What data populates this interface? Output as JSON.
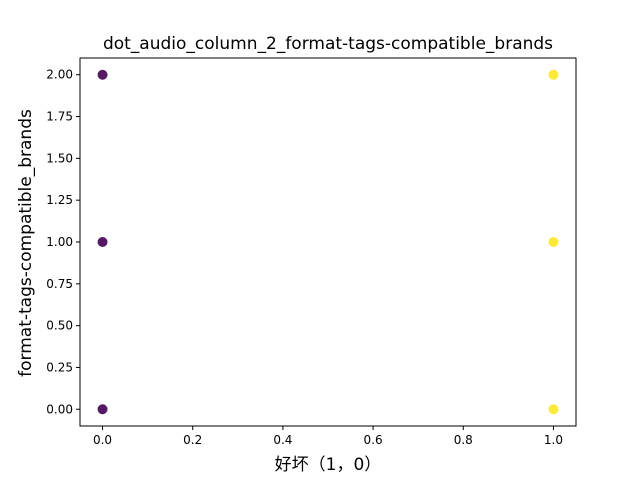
{
  "chart_data": {
    "type": "scatter",
    "title": "dot_audio_column_2_format-tags-compatible_brands",
    "xlabel": "好坏（1，0）",
    "ylabel": "format-tags-compatible_brands",
    "xlim": [
      -0.05,
      1.05
    ],
    "ylim": [
      -0.1,
      2.1
    ],
    "xticks": [
      0.0,
      0.2,
      0.4,
      0.6,
      0.8,
      1.0
    ],
    "xtick_labels": [
      "0.0",
      "0.2",
      "0.4",
      "0.6",
      "0.8",
      "1.0"
    ],
    "yticks": [
      0.0,
      0.25,
      0.5,
      0.75,
      1.0,
      1.25,
      1.5,
      1.75,
      2.0
    ],
    "ytick_labels": [
      "0.00",
      "0.25",
      "0.50",
      "0.75",
      "1.00",
      "1.25",
      "1.50",
      "1.75",
      "2.00"
    ],
    "grid": false,
    "legend": "none",
    "points": [
      {
        "x": 0,
        "y": 0,
        "color": "#440154"
      },
      {
        "x": 0,
        "y": 1,
        "color": "#440154"
      },
      {
        "x": 0,
        "y": 2,
        "color": "#440154"
      },
      {
        "x": 1,
        "y": 0,
        "color": "#fde725"
      },
      {
        "x": 1,
        "y": 1,
        "color": "#fde725"
      },
      {
        "x": 1,
        "y": 2,
        "color": "#fde725"
      }
    ]
  }
}
